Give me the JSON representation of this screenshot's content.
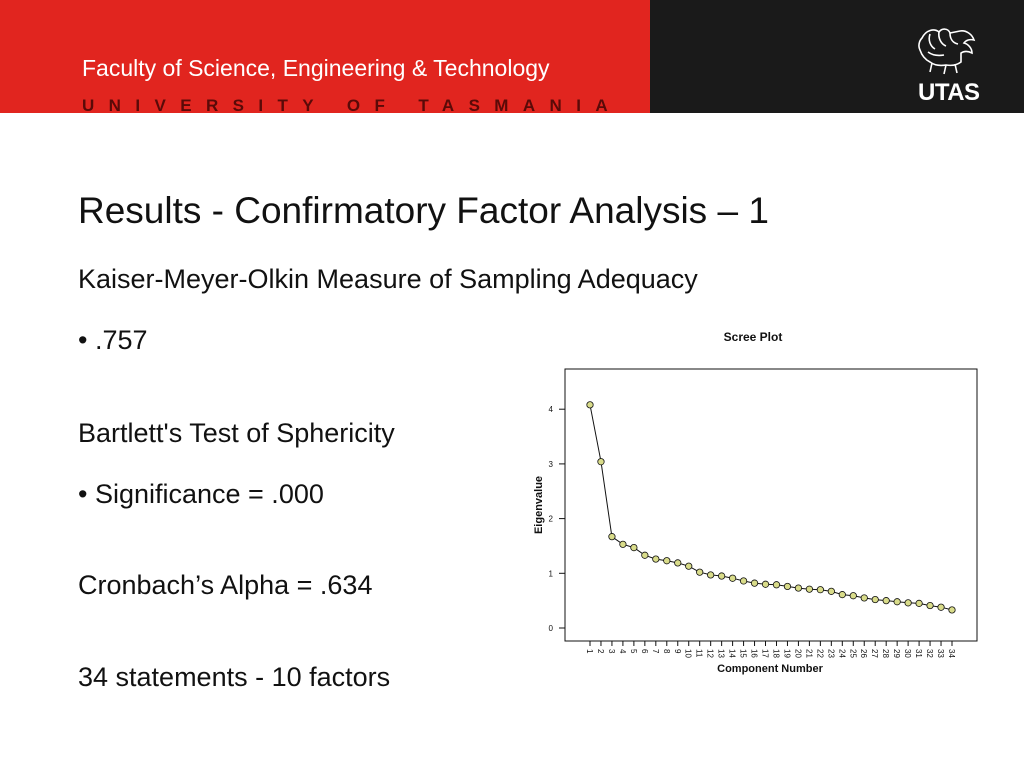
{
  "header": {
    "faculty": "Faculty of Science, Engineering & Technology",
    "university": "UNIVERSITY OF TASMANIA",
    "logo_text": "UTAS",
    "logo_icon": "lion-crest-icon",
    "colors": {
      "red": "#e1251f",
      "black": "#1a1a1a"
    }
  },
  "slide": {
    "title": "Results - Confirmatory Factor Analysis – 1",
    "kmo_label": "Kaiser-Meyer-Olkin Measure of Sampling Adequacy",
    "kmo_value": "• .757",
    "bartlett_label": "Bartlett's Test of Sphericity",
    "bartlett_value": "• Significance = .000",
    "cronbach": "Cronbach’s Alpha = .634",
    "statements": "34 statements - 10 factors"
  },
  "chart_data": {
    "type": "line",
    "title": "Scree Plot",
    "xlabel": "Component Number",
    "ylabel": "Eigenvalue",
    "ylim": [
      0,
      4.5
    ],
    "yticks": [
      0,
      1,
      2,
      3,
      4
    ],
    "grid": false,
    "marker_color": "#d9dc8a",
    "x": [
      1,
      2,
      3,
      4,
      5,
      6,
      7,
      8,
      9,
      10,
      11,
      12,
      13,
      14,
      15,
      16,
      17,
      18,
      19,
      20,
      21,
      22,
      23,
      24,
      25,
      26,
      27,
      28,
      29,
      30,
      31,
      32,
      33,
      34
    ],
    "series": [
      {
        "values": [
          4.08,
          3.04,
          1.67,
          1.53,
          1.47,
          1.33,
          1.26,
          1.23,
          1.19,
          1.13,
          1.02,
          0.97,
          0.95,
          0.91,
          0.86,
          0.82,
          0.8,
          0.79,
          0.76,
          0.73,
          0.71,
          0.7,
          0.67,
          0.61,
          0.59,
          0.55,
          0.52,
          0.5,
          0.48,
          0.46,
          0.45,
          0.41,
          0.38,
          0.33
        ]
      }
    ]
  }
}
